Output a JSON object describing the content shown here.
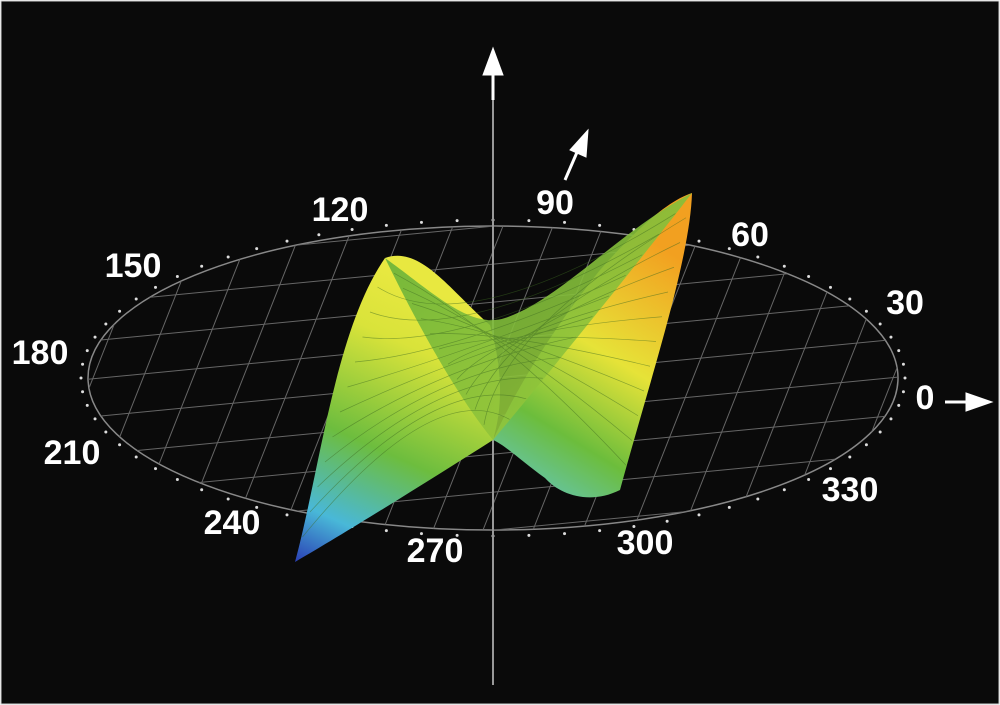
{
  "polar_labels": [
    0,
    30,
    60,
    90,
    120,
    150,
    180,
    210,
    240,
    270,
    300,
    330
  ]
}
